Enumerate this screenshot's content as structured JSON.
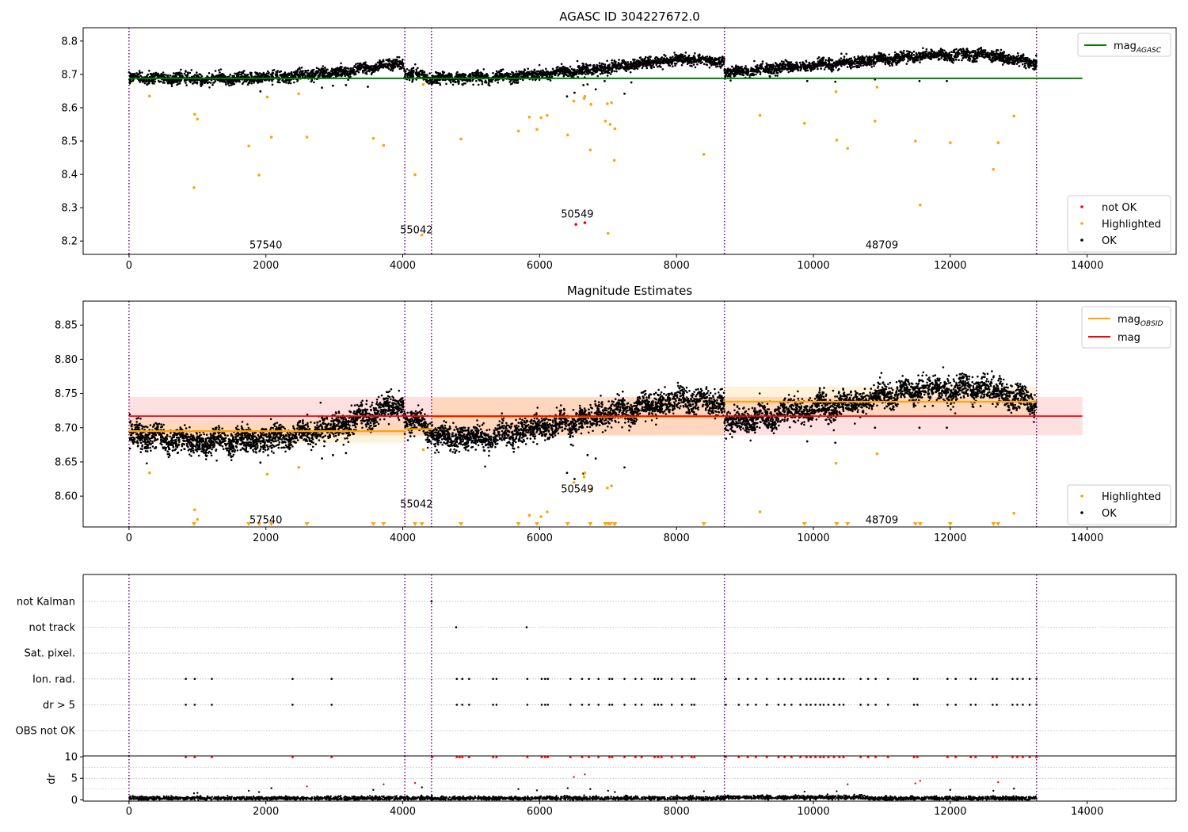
{
  "chart_data": [
    {
      "type": "scatter",
      "title": "AGASC ID 304227672.0",
      "xlim": [
        -670,
        15300
      ],
      "ylim": [
        8.16,
        8.84
      ],
      "xticks": [
        0,
        2000,
        4000,
        6000,
        8000,
        10000,
        12000,
        14000
      ],
      "xtick_labels": [
        "0",
        "2000",
        "4000",
        "6000",
        "8000",
        "10000",
        "12000",
        "14000"
      ],
      "yticks": [
        8.2,
        8.3,
        8.4,
        8.5,
        8.6,
        8.7,
        8.8
      ],
      "ytick_labels": [
        "8.2",
        "8.3",
        "8.4",
        "8.5",
        "8.6",
        "8.7",
        "8.8"
      ],
      "obsid_boundaries": [
        0,
        4030,
        4420,
        8700,
        13260
      ],
      "obsid_labels": [
        {
          "text": "57540",
          "x": 2000,
          "y": 8.19
        },
        {
          "text": "55042",
          "x": 4200,
          "y": 8.235
        },
        {
          "text": "50549",
          "x": 6550,
          "y": 8.283
        },
        {
          "text": "48709",
          "x": 11000,
          "y": 8.19
        }
      ],
      "legend_top": {
        "position": "top-right",
        "entries": [
          {
            "label": "mag",
            "subscript": "AGASC",
            "color": "#008000",
            "kind": "line"
          }
        ]
      },
      "legend_bottom": {
        "position": "bottom-right",
        "entries": [
          {
            "label": "not OK",
            "color": "#ff0000",
            "kind": "point"
          },
          {
            "label": "Highlighted",
            "color": "#ffa500",
            "kind": "point"
          },
          {
            "label": "OK",
            "color": "#000000",
            "kind": "point"
          }
        ]
      },
      "mag_agasc": {
        "value": 8.688,
        "x_range": [
          0,
          13930
        ],
        "color": "#008000"
      },
      "ok_trend": [
        [
          0,
          8.69
        ],
        [
          1000,
          8.685
        ],
        [
          2000,
          8.69
        ],
        [
          3000,
          8.705
        ],
        [
          3700,
          8.725
        ],
        [
          4000,
          8.735
        ],
        [
          4030,
          8.705
        ],
        [
          4420,
          8.69
        ],
        [
          5200,
          8.69
        ],
        [
          6000,
          8.7
        ],
        [
          7000,
          8.72
        ],
        [
          8000,
          8.745
        ],
        [
          8700,
          8.74
        ],
        [
          8700,
          8.705
        ],
        [
          9500,
          8.72
        ],
        [
          10500,
          8.735
        ],
        [
          11500,
          8.755
        ],
        [
          12500,
          8.76
        ],
        [
          13260,
          8.735
        ]
      ],
      "ok_scatter_sd": 0.008,
      "not_ok_points": [
        [
          6530,
          8.25
        ],
        [
          6660,
          8.255
        ]
      ],
      "highlighted_points": [
        [
          300,
          8.635
        ],
        [
          950,
          8.36
        ],
        [
          960,
          8.58
        ],
        [
          1000,
          8.566
        ],
        [
          1750,
          8.485
        ],
        [
          1900,
          8.398
        ],
        [
          2020,
          8.632
        ],
        [
          2080,
          8.512
        ],
        [
          2480,
          8.642
        ],
        [
          2600,
          8.512
        ],
        [
          3570,
          8.508
        ],
        [
          3720,
          8.487
        ],
        [
          4180,
          8.399
        ],
        [
          4280,
          8.218
        ],
        [
          4300,
          8.67
        ],
        [
          4850,
          8.506
        ],
        [
          5690,
          8.53
        ],
        [
          5850,
          8.572
        ],
        [
          5960,
          8.535
        ],
        [
          6020,
          8.57
        ],
        [
          6110,
          8.577
        ],
        [
          6410,
          8.518
        ],
        [
          6500,
          8.62
        ],
        [
          6650,
          8.628
        ],
        [
          6660,
          8.634
        ],
        [
          6740,
          8.473
        ],
        [
          6750,
          8.61
        ],
        [
          6960,
          8.56
        ],
        [
          6990,
          8.612
        ],
        [
          7000,
          8.223
        ],
        [
          7030,
          8.55
        ],
        [
          7050,
          8.615
        ],
        [
          7090,
          8.442
        ],
        [
          7100,
          8.537
        ],
        [
          8400,
          8.46
        ],
        [
          9220,
          8.577
        ],
        [
          9870,
          8.553
        ],
        [
          10330,
          8.648
        ],
        [
          10340,
          8.503
        ],
        [
          10500,
          8.478
        ],
        [
          10900,
          8.56
        ],
        [
          10930,
          8.662
        ],
        [
          11490,
          8.5
        ],
        [
          11560,
          8.308
        ],
        [
          12000,
          8.495
        ],
        [
          12630,
          8.415
        ],
        [
          12700,
          8.495
        ],
        [
          12930,
          8.575
        ]
      ],
      "ok_outliers": [
        [
          1920,
          8.649
        ],
        [
          2820,
          8.66
        ],
        [
          2980,
          8.666
        ],
        [
          3170,
          8.668
        ],
        [
          3490,
          8.663
        ],
        [
          6400,
          8.634
        ],
        [
          6510,
          8.645
        ],
        [
          6640,
          8.668
        ],
        [
          6700,
          8.67
        ],
        [
          6820,
          8.655
        ],
        [
          6950,
          8.68
        ],
        [
          7240,
          8.642
        ],
        [
          7340,
          8.676
        ],
        [
          9910,
          8.68
        ],
        [
          10320,
          8.678
        ],
        [
          10900,
          8.685
        ],
        [
          11550,
          8.68
        ],
        [
          11950,
          8.68
        ]
      ]
    },
    {
      "type": "scatter",
      "title": "Magnitude Estimates",
      "xlim": [
        -670,
        15300
      ],
      "ylim": [
        8.555,
        8.885
      ],
      "xticks": [
        0,
        2000,
        4000,
        6000,
        8000,
        10000,
        12000,
        14000
      ],
      "xtick_labels": [
        "0",
        "2000",
        "4000",
        "6000",
        "8000",
        "10000",
        "12000",
        "14000"
      ],
      "yticks": [
        8.6,
        8.65,
        8.7,
        8.75,
        8.8,
        8.85
      ],
      "ytick_labels": [
        "8.60",
        "8.65",
        "8.70",
        "8.75",
        "8.80",
        "8.85"
      ],
      "obsid_boundaries": [
        0,
        4030,
        4420,
        8700,
        13260
      ],
      "obsid_labels": [
        {
          "text": "57540",
          "x": 2000,
          "y": 8.566
        },
        {
          "text": "55042",
          "x": 4200,
          "y": 8.589
        },
        {
          "text": "50549",
          "x": 6550,
          "y": 8.611
        },
        {
          "text": "48709",
          "x": 11000,
          "y": 8.566
        }
      ],
      "legend_top": {
        "position": "top-right",
        "entries": [
          {
            "label": "mag",
            "subscript": "OBSID",
            "color": "#ffa500",
            "kind": "line"
          },
          {
            "label": "mag",
            "subscript": "",
            "color": "#ff0000",
            "kind": "line"
          }
        ]
      },
      "legend_bottom": {
        "position": "bottom-right",
        "entries": [
          {
            "label": "Highlighted",
            "color": "#ffa500",
            "kind": "point"
          },
          {
            "label": "OK",
            "color": "#000000",
            "kind": "point"
          }
        ]
      },
      "mag_mean": {
        "value": 8.717,
        "band": [
          8.689,
          8.745
        ],
        "x_range": [
          0,
          13930
        ],
        "color": "#ff0000"
      },
      "mag_obsid": [
        {
          "x": [
            0,
            4030
          ],
          "value": 8.695,
          "band": [
            8.678,
            8.712
          ]
        },
        {
          "x": [
            4030,
            4420
          ],
          "value": 8.698,
          "band": [
            8.686,
            8.71
          ]
        },
        {
          "x": [
            4420,
            8700
          ],
          "value": 8.716,
          "band": [
            8.688,
            8.744
          ]
        },
        {
          "x": [
            8700,
            13260
          ],
          "value": 8.738,
          "band": [
            8.716,
            8.76
          ]
        }
      ],
      "ok_trend": [
        [
          0,
          8.69
        ],
        [
          1000,
          8.678
        ],
        [
          2000,
          8.682
        ],
        [
          3000,
          8.7
        ],
        [
          3700,
          8.725
        ],
        [
          4000,
          8.735
        ],
        [
          4030,
          8.71
        ],
        [
          4420,
          8.7
        ],
        [
          4500,
          8.685
        ],
        [
          5200,
          8.685
        ],
        [
          6000,
          8.7
        ],
        [
          7000,
          8.72
        ],
        [
          8000,
          8.74
        ],
        [
          8700,
          8.735
        ],
        [
          8700,
          8.705
        ],
        [
          9500,
          8.72
        ],
        [
          10500,
          8.735
        ],
        [
          11500,
          8.755
        ],
        [
          12500,
          8.758
        ],
        [
          13260,
          8.735
        ]
      ],
      "ok_scatter_sd": 0.009,
      "highlighted_points": [
        [
          300,
          8.634
        ],
        [
          960,
          8.58
        ],
        [
          1000,
          8.566
        ],
        [
          2020,
          8.632
        ],
        [
          2480,
          8.642
        ],
        [
          4300,
          8.668
        ],
        [
          5850,
          8.572
        ],
        [
          6020,
          8.57
        ],
        [
          6110,
          8.577
        ],
        [
          6500,
          8.62
        ],
        [
          6650,
          8.628
        ],
        [
          6660,
          8.634
        ],
        [
          6750,
          8.61
        ],
        [
          6990,
          8.612
        ],
        [
          7050,
          8.615
        ],
        [
          9220,
          8.577
        ],
        [
          10330,
          8.648
        ],
        [
          10930,
          8.662
        ],
        [
          12930,
          8.575
        ]
      ],
      "floor_markers_x": [
        950,
        1750,
        1900,
        2080,
        2600,
        3570,
        3720,
        4180,
        4280,
        4850,
        5690,
        5960,
        6410,
        6740,
        6960,
        7000,
        7030,
        7090,
        7100,
        8400,
        9870,
        10340,
        10500,
        11490,
        11560,
        12000,
        12630,
        12700
      ],
      "ok_outliers": [
        [
          1920,
          8.649
        ],
        [
          2820,
          8.655
        ],
        [
          2980,
          8.66
        ],
        [
          3170,
          8.663
        ],
        [
          6400,
          8.634
        ],
        [
          6510,
          8.625
        ],
        [
          6640,
          8.633
        ],
        [
          6700,
          8.66
        ],
        [
          6820,
          8.655
        ],
        [
          7240,
          8.642
        ],
        [
          9910,
          8.68
        ],
        [
          10320,
          8.678
        ],
        [
          10900,
          8.7
        ],
        [
          11550,
          8.7
        ],
        [
          11950,
          8.7
        ]
      ]
    },
    {
      "type": "scatter",
      "title": "",
      "xlim": [
        -670,
        15300
      ],
      "xticks": [
        0,
        2000,
        4000,
        6000,
        8000,
        10000,
        12000,
        14000
      ],
      "xtick_labels": [
        "0",
        "2000",
        "4000",
        "6000",
        "8000",
        "10000",
        "12000",
        "14000"
      ],
      "obsid_boundaries": [
        0,
        4030,
        4420,
        8700,
        13260
      ],
      "flag_categories": [
        "not Kalman",
        "not track",
        "Sat. pixel.",
        "Ion. rad.",
        "dr > 5",
        "OBS not OK"
      ],
      "flag_points": {
        "not Kalman": [
          4420
        ],
        "not track": [
          4780,
          5810
        ],
        "Sat. pixel.": [],
        "Ion. rad.": [
          830,
          960,
          1210,
          2390,
          2960,
          4790,
          4870,
          4970,
          5320,
          5370,
          5820,
          6030,
          6080,
          6120,
          6450,
          6620,
          6720,
          6860,
          7020,
          7060,
          7240,
          7400,
          7490,
          7680,
          7730,
          7780,
          7930,
          8080,
          8220,
          8260,
          8720,
          8910,
          9040,
          9160,
          9320,
          9490,
          9580,
          9680,
          9810,
          9900,
          9960,
          10030,
          10100,
          10150,
          10220,
          10300,
          10380,
          10440,
          10690,
          10800,
          10910,
          11090,
          11470,
          11520,
          11960,
          12080,
          12300,
          12370,
          12620,
          12680,
          12910,
          12980,
          13060,
          13160,
          13260
        ],
        "dr > 5": [
          830,
          960,
          1210,
          2390,
          2960,
          4790,
          4870,
          4970,
          5320,
          5370,
          5820,
          6030,
          6080,
          6120,
          6450,
          6620,
          6720,
          6860,
          7020,
          7060,
          7240,
          7400,
          7490,
          7680,
          7730,
          7780,
          7930,
          8080,
          8220,
          8260,
          8720,
          8910,
          9040,
          9160,
          9320,
          9490,
          9580,
          9680,
          9810,
          9900,
          9960,
          10030,
          10100,
          10150,
          10220,
          10300,
          10380,
          10440,
          10690,
          10800,
          10910,
          11090,
          11470,
          11520,
          11960,
          12080,
          12300,
          12370,
          12620,
          12680,
          12910,
          12980,
          13060,
          13160,
          13260
        ],
        "OBS not OK": []
      },
      "dr_panel": {
        "ylabel": "dr",
        "ylim": [
          -0.3,
          10.2
        ],
        "yticks": [
          0,
          5,
          10
        ],
        "ytick_labels": [
          "0",
          "5",
          "10"
        ],
        "clipped_at_10_x": [
          830,
          960,
          1210,
          2390,
          2960,
          4430,
          4790,
          4830,
          4870,
          4970,
          5320,
          5370,
          5820,
          6030,
          6080,
          6120,
          6450,
          6620,
          6720,
          6860,
          7020,
          7060,
          7240,
          7400,
          7490,
          7680,
          7730,
          7780,
          7930,
          8080,
          8220,
          8260,
          8720,
          8910,
          9040,
          9160,
          9320,
          9490,
          9580,
          9680,
          9810,
          9900,
          9960,
          10030,
          10100,
          10150,
          10220,
          10300,
          10380,
          10440,
          10690,
          10800,
          10910,
          11090,
          11470,
          11520,
          11960,
          12080,
          12300,
          12370,
          12620,
          12680,
          12910,
          12980,
          13060,
          13160,
          13260
        ],
        "red_points": [
          [
            2600,
            3.1
          ],
          [
            3720,
            3.6
          ],
          [
            4180,
            3.9
          ],
          [
            6500,
            5.3
          ],
          [
            6660,
            5.9
          ],
          [
            10500,
            3.6
          ],
          [
            11490,
            3.8
          ],
          [
            11560,
            4.4
          ],
          [
            12700,
            4.1
          ]
        ],
        "black_points": [
          [
            950,
            1.5
          ],
          [
            1000,
            1.6
          ],
          [
            1750,
            2.1
          ],
          [
            1900,
            1.8
          ],
          [
            2080,
            2.7
          ],
          [
            3570,
            2.3
          ],
          [
            4280,
            2.9
          ],
          [
            5690,
            2.5
          ],
          [
            5960,
            2.2
          ],
          [
            6410,
            2.7
          ],
          [
            6740,
            2.5
          ],
          [
            7000,
            2.1
          ],
          [
            7100,
            1.8
          ],
          [
            8400,
            2.0
          ],
          [
            9870,
            1.9
          ],
          [
            10340,
            2.0
          ],
          [
            12000,
            2.3
          ],
          [
            12630,
            2.1
          ],
          [
            12930,
            2.6
          ]
        ]
      }
    }
  ]
}
